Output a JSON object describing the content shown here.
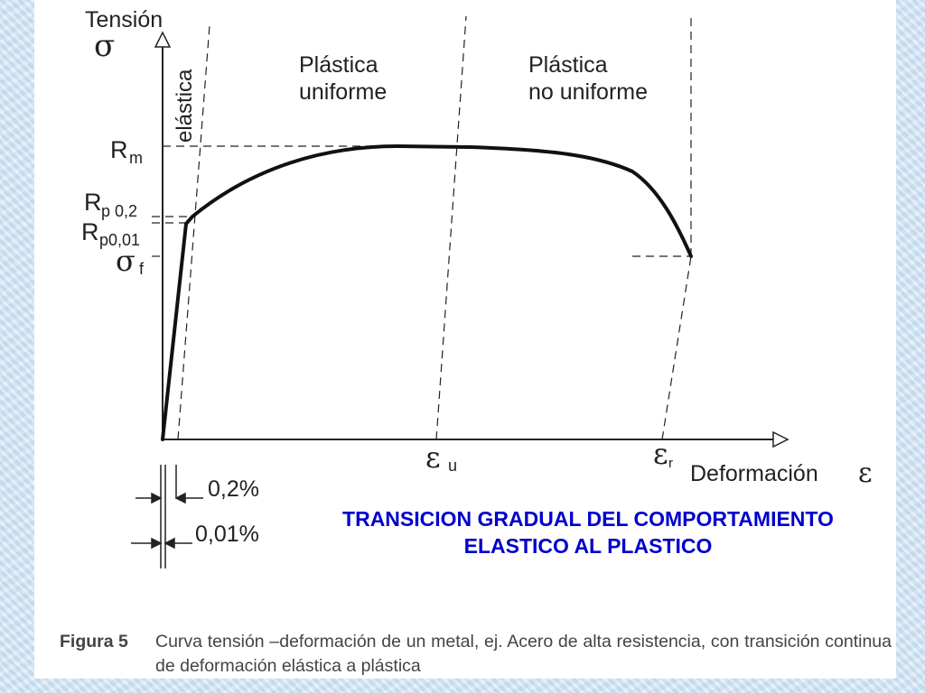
{
  "diagram": {
    "y_axis_title": "Tensión",
    "y_axis_symbol": "σ",
    "x_axis_title": "Deformación",
    "x_axis_symbol": "ε",
    "region_elastic": "elástica",
    "region_uniform_line1": "Plástica",
    "region_uniform_line2": "uniforme",
    "region_nonuniform_line1": "Plástica",
    "region_nonuniform_line2": "no uniforme",
    "y_ticks": {
      "rm": {
        "main": "R",
        "sub": "m"
      },
      "rp02": {
        "main": "R",
        "sub": "p 0,2"
      },
      "rp001": {
        "main": "R",
        "sub": "p0,01"
      },
      "sf": {
        "main": "σ",
        "sub": "f"
      }
    },
    "x_ticks": {
      "eu": {
        "main": "ε",
        "sub": "u"
      },
      "er": {
        "main": "ε",
        "sub": "r"
      }
    },
    "offset_02": "0,2%",
    "offset_001": "0,01%"
  },
  "title": {
    "line1": "TRANSICION GRADUAL DEL COMPORTAMIENTO",
    "line2": "ELASTICO AL PLASTICO"
  },
  "caption": {
    "figure_label": "Figura 5",
    "text": "Curva tensión –deformación de un metal, ej. Acero de alta resistencia, con transición continua de deformación elástica a plástica"
  },
  "colors": {
    "title": "#0000cc",
    "background": "#cfe2f3",
    "curve": "#111111"
  }
}
